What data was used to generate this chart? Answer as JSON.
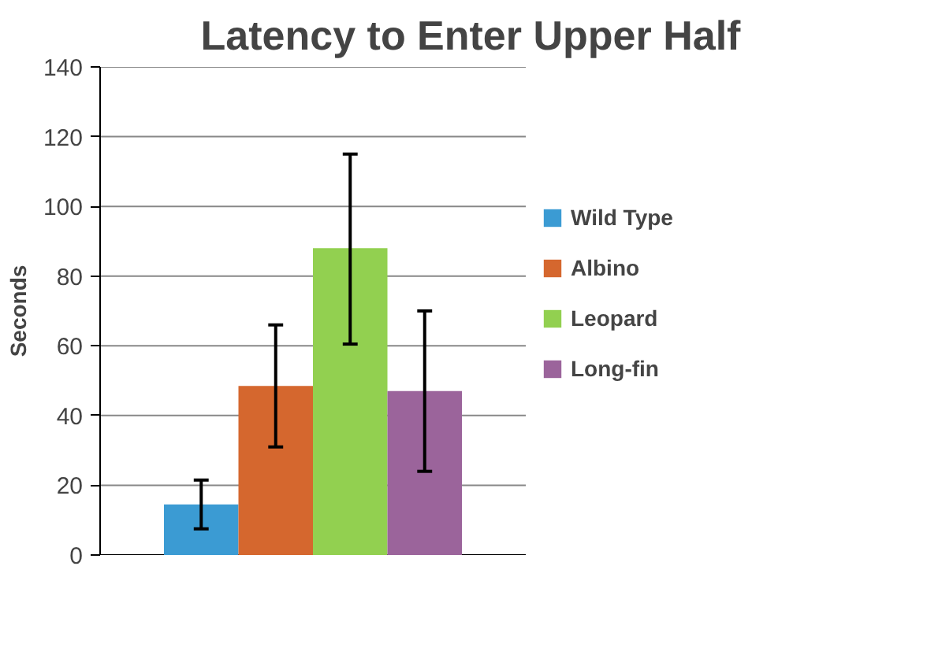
{
  "chart_data": {
    "type": "bar",
    "title": "Latency to Enter Upper Half",
    "ylabel": "Seconds",
    "categories": [
      null
    ],
    "series": [
      {
        "name": "Wild Type",
        "color": "#3b9bd3",
        "values": [
          14.5
        ],
        "errors": [
          [
            7.5,
            21.5
          ]
        ]
      },
      {
        "name": "Albino",
        "color": "#d5672e",
        "values": [
          48.5
        ],
        "errors": [
          [
            31,
            66
          ]
        ]
      },
      {
        "name": "Leopard",
        "color": "#92d050",
        "values": [
          88
        ],
        "errors": [
          [
            60.5,
            115
          ]
        ]
      },
      {
        "name": "Long-fin",
        "color": "#9b649b",
        "values": [
          47
        ],
        "errors": [
          [
            24,
            70
          ]
        ]
      }
    ],
    "ylim": [
      0,
      140
    ],
    "yticks": [
      0,
      20,
      40,
      60,
      80,
      100,
      120,
      140
    ],
    "grid": "y",
    "legend": "right"
  }
}
